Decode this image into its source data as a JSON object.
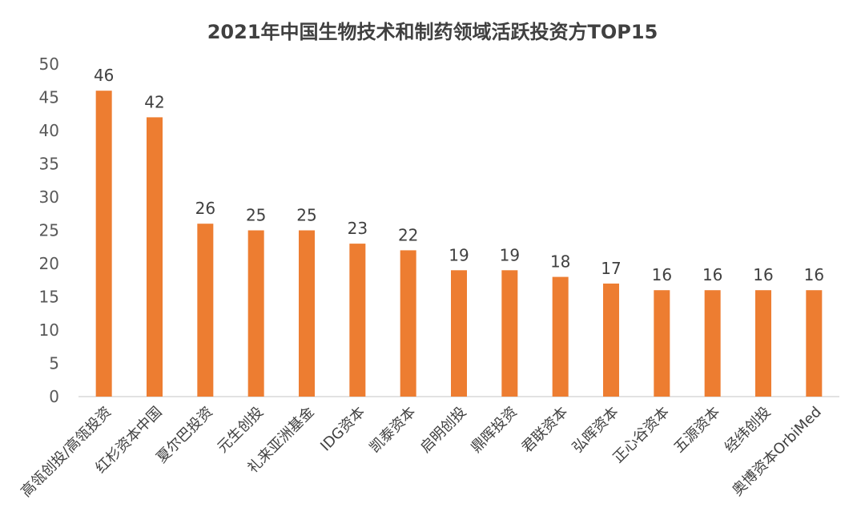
{
  "chart_data": {
    "type": "bar",
    "title": "2021年中国生物技术和制药领域活跃投资方TOP15",
    "categories": [
      "高瓴创投/高瓴投资",
      "红杉资本中国",
      "夏尔巴投资",
      "元生创投",
      "礼来亚洲基金",
      "IDG资本",
      "凯泰资本",
      "启明创投",
      "鼎晖投资",
      "君联资本",
      "弘晖资本",
      "正心谷资本",
      "五源资本",
      "经纬创投",
      "奥博资本OrbiMed"
    ],
    "values": [
      46,
      42,
      26,
      25,
      25,
      23,
      22,
      19,
      19,
      18,
      17,
      16,
      16,
      16,
      16
    ],
    "yticks": [
      "0",
      "5",
      "10",
      "15",
      "20",
      "25",
      "30",
      "35",
      "40",
      "45",
      "50"
    ],
    "ylim": [
      0,
      50
    ],
    "xlabel": "",
    "ylabel": "",
    "grid": false,
    "bar_color": "#ED7D31",
    "axis_color": "#D9D9D9"
  }
}
